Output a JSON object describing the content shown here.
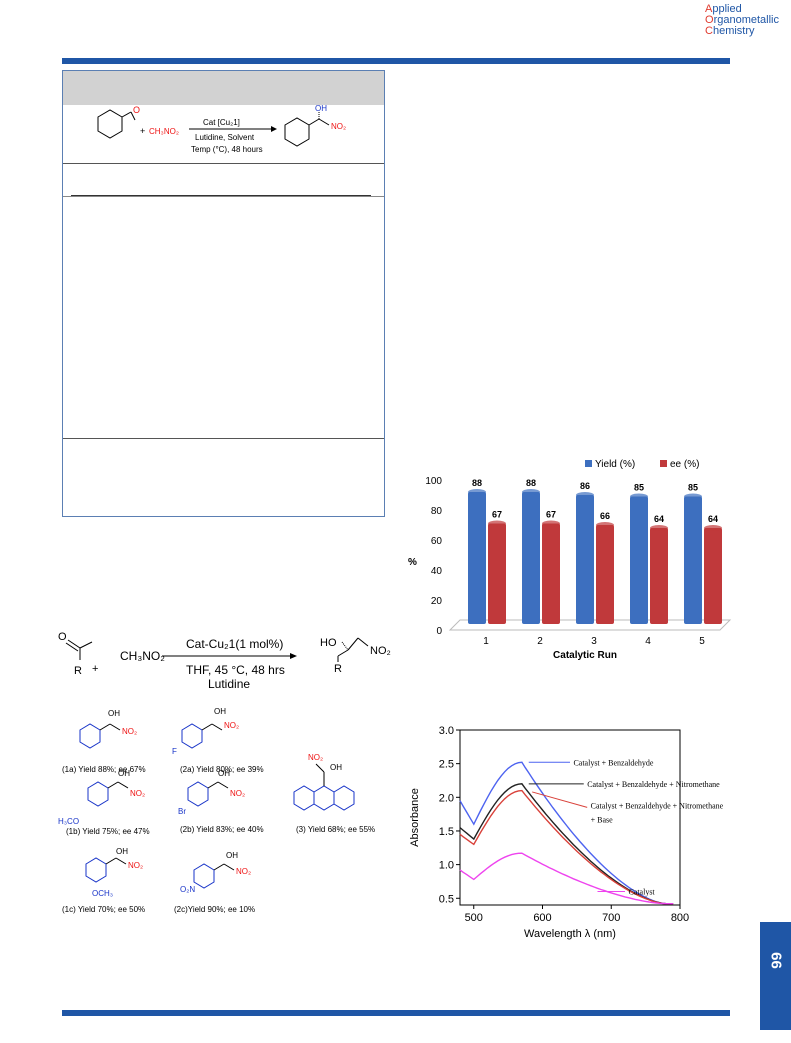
{
  "journal": {
    "line1_cap": "A",
    "line1_rest": "pplied",
    "line2_cap": "O",
    "line2_rest": "rganometallic",
    "line3_cap": "C",
    "line3_rest": "hemistry"
  },
  "page_number": "66",
  "table_scheme": {
    "reagent": "CH₃NO₂",
    "catalyst": "Cat [Cu₂1]",
    "conditions_1": "Lutidine, Solvent",
    "conditions_2": "Temp (°C), 48 hours",
    "product_oh": "OH",
    "product_no2": "NO₂",
    "plus": "+"
  },
  "scheme2": {
    "reactant_r": "R",
    "plus": "+",
    "reagent": "CH₃NO₂",
    "catalyst": "Cat-Cu₂1(1 mol%)",
    "conditions": "THF, 45 °C, 48 hrs",
    "base": "Lutidine",
    "product_ho": "HO",
    "product_no2": "NO₂",
    "product_r": "R",
    "products": [
      {
        "label": "(1a) Yield 88%; ee 67%"
      },
      {
        "label": "(2a) Yield 80%; ee 39%"
      },
      {
        "label": "(1b) Yield 75%; ee 47%"
      },
      {
        "label": "(2b) Yield 83%; ee 40%"
      },
      {
        "label": "(3) Yield 68%; ee 55%"
      },
      {
        "label": "(1c) Yield 70%; ee 50%"
      },
      {
        "label": "(2c)Yield 90%; ee 10%"
      }
    ],
    "substituents": {
      "f": "F",
      "meo": "H₃CO",
      "br": "Br",
      "och3": "OCH₃",
      "o2n": "O₂N",
      "oh": "OH",
      "no2": "NO₂"
    }
  },
  "chart_data": [
    {
      "type": "bar",
      "categories": [
        "1",
        "2",
        "3",
        "4",
        "5"
      ],
      "series": [
        {
          "name": "Yield (%)",
          "values": [
            88,
            88,
            86,
            85,
            85
          ],
          "color": "#3d6fbf"
        },
        {
          "name": "ee (%)",
          "values": [
            67,
            67,
            66,
            64,
            64
          ],
          "color": "#c0393b"
        }
      ],
      "xlabel": "Catalytic Run",
      "ylabel": "%",
      "ylim": [
        0,
        100
      ],
      "yticks": [
        0,
        20,
        40,
        60,
        80,
        100
      ],
      "legend": "top"
    },
    {
      "type": "line",
      "xlabel": "Wavelength λ (nm)",
      "ylabel": "Absorbance",
      "xlim": [
        480,
        800
      ],
      "ylim": [
        0.4,
        3.0
      ],
      "xticks": [
        500,
        600,
        700,
        800
      ],
      "yticks": [
        "0.5",
        "1.0",
        "1.5",
        "2.0",
        "2.5",
        "3.0"
      ],
      "series": [
        {
          "name": "Catalyst + Benzaldehyde",
          "color": "#4d63f0",
          "peak": 2.52,
          "start": 1.95,
          "min": 1.6
        },
        {
          "name": "Catalyst + Benzaldehyde + Nitromethane",
          "color": "#222222",
          "peak": 2.2,
          "start": 1.55,
          "min": 1.38
        },
        {
          "name": "Catalyst + Benzaldehyde + Nitromethane + Base",
          "color": "#d9413a",
          "peak": 2.1,
          "start": 1.45,
          "min": 1.3
        },
        {
          "name": "Catalyst",
          "color": "#ee44ee",
          "peak": 1.17,
          "start": 0.92,
          "min": 0.78
        }
      ],
      "annotations": [
        "Catalyst + Benzaldehyde",
        "Catalyst + Benzaldehyde + Nitromethane",
        "Catalyst + Benzaldehyde + Nitromethane",
        "+ Base",
        "Catalyst"
      ]
    }
  ]
}
